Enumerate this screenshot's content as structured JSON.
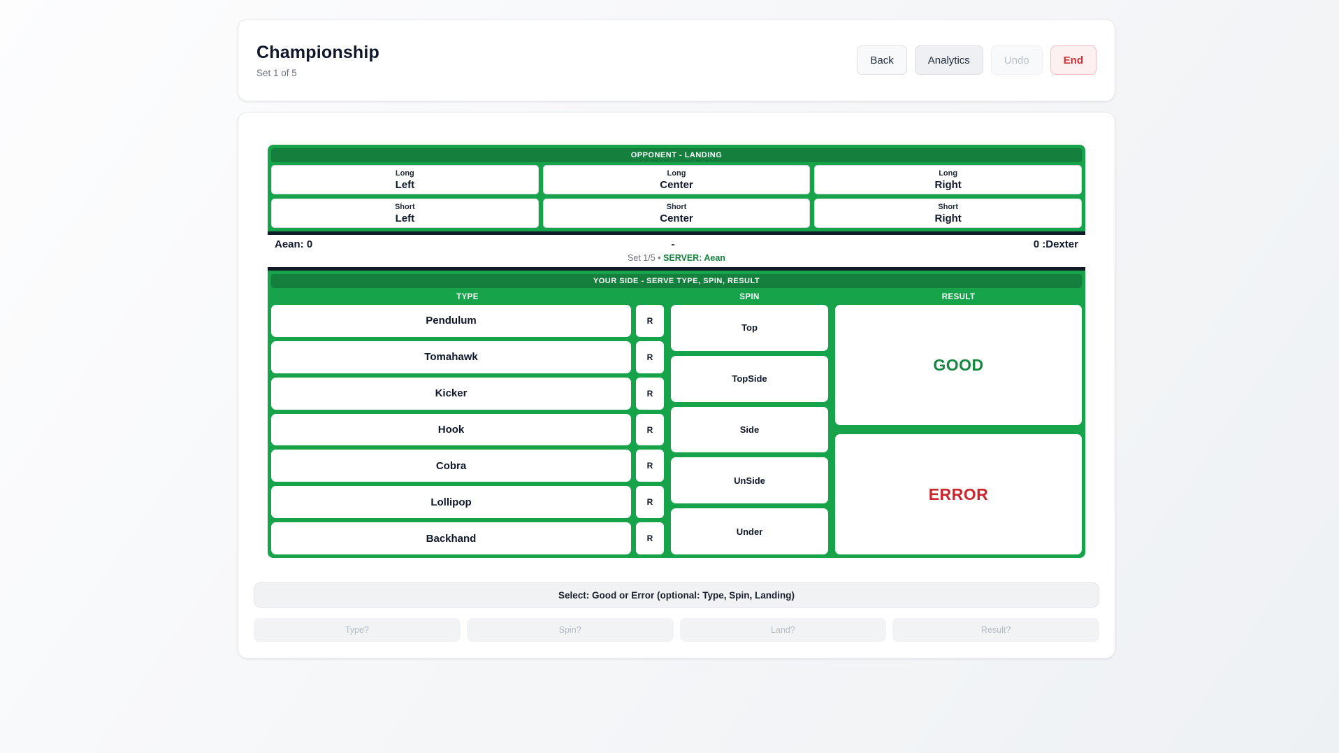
{
  "colors": {
    "accent_green": "#17a34a",
    "accent_green_dark": "#15803d",
    "score_border_dark": "#111827",
    "good_text": "#15883f",
    "error_text": "#c9262d",
    "end_button_red": "#d03036"
  },
  "header": {
    "title": "Championship",
    "subtitle": "Set 1 of 5",
    "back_label": "Back",
    "analytics_label": "Analytics",
    "undo_label": "Undo",
    "end_label": "End"
  },
  "landing": {
    "title": "OPPONENT - LANDING",
    "cells": [
      {
        "depth": "Long",
        "side": "Left"
      },
      {
        "depth": "Long",
        "side": "Center"
      },
      {
        "depth": "Long",
        "side": "Right"
      },
      {
        "depth": "Short",
        "side": "Left"
      },
      {
        "depth": "Short",
        "side": "Center"
      },
      {
        "depth": "Short",
        "side": "Right"
      }
    ]
  },
  "score": {
    "left": "Aean: 0",
    "center": "-",
    "right": "0 :Dexter",
    "set": "Set 1/5",
    "bullet": "•",
    "server": "SERVER: Aean"
  },
  "serve": {
    "title": "YOUR SIDE - SERVE TYPE, SPIN, RESULT",
    "col_type": "TYPE",
    "col_spin": "SPIN",
    "col_result": "RESULT",
    "types": [
      {
        "label": "Pendulum",
        "r": "R"
      },
      {
        "label": "Tomahawk",
        "r": "R"
      },
      {
        "label": "Kicker",
        "r": "R"
      },
      {
        "label": "Hook",
        "r": "R"
      },
      {
        "label": "Cobra",
        "r": "R"
      },
      {
        "label": "Lollipop",
        "r": "R"
      },
      {
        "label": "Backhand",
        "r": "R"
      }
    ],
    "spins": [
      "Top",
      "TopSide",
      "Side",
      "UnSide",
      "Under"
    ],
    "results": {
      "good": "GOOD",
      "error": "ERROR"
    }
  },
  "hint": "Select: Good or Error (optional: Type, Spin, Landing)",
  "footer": [
    "Type?",
    "Spin?",
    "Land?",
    "Result?"
  ]
}
